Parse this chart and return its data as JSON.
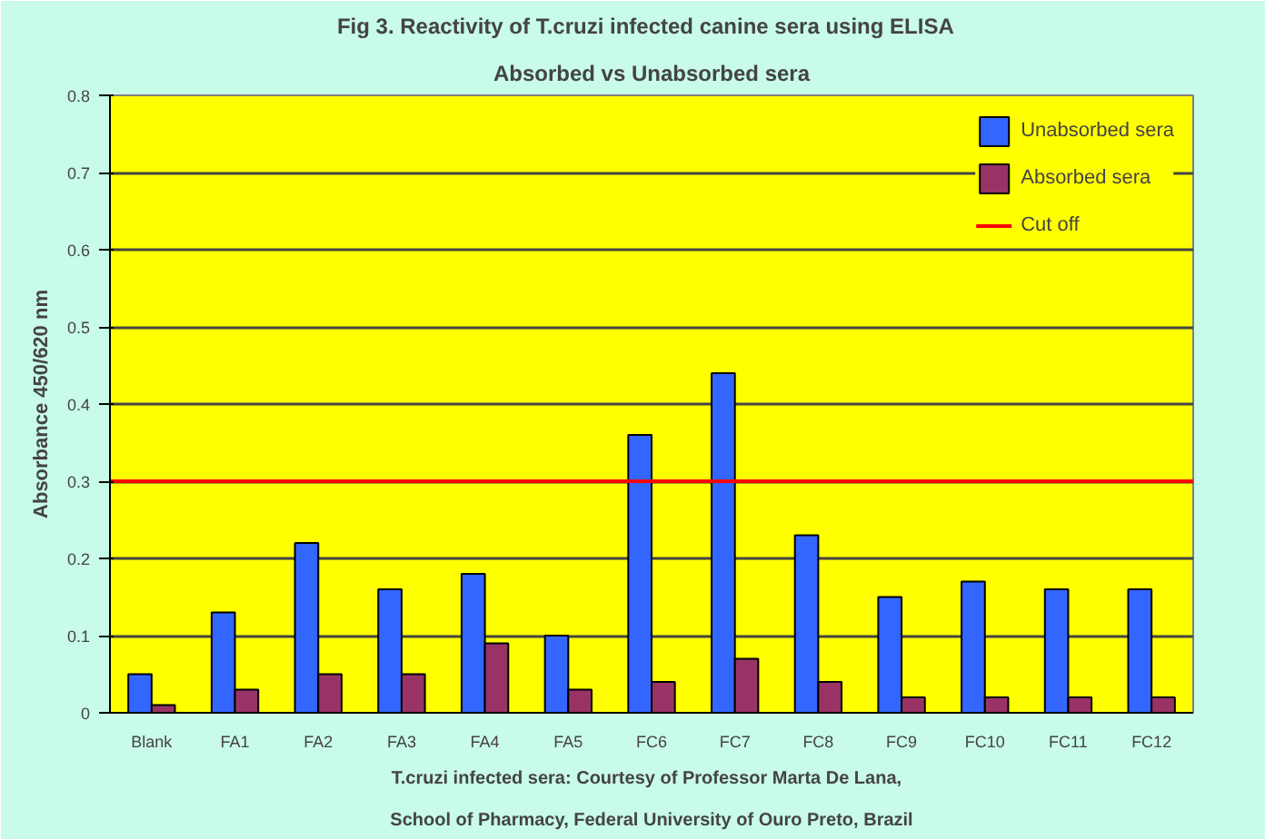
{
  "chart_data": {
    "type": "bar",
    "title": "Fig 3.   Reactivity of T.cruzi infected canine sera using ELISA",
    "subtitle": "Absorbed vs Unabsorbed sera",
    "ylabel": "Absorbance 450/620 nm",
    "categories": [
      "Blank",
      "FA1",
      "FA2",
      "FA3",
      "FA4",
      "FA5",
      "FC6",
      "FC7",
      "FC8",
      "FC9",
      "FC10",
      "FC11",
      "FC12"
    ],
    "series": [
      {
        "name": "Unabsorbed sera",
        "color": "#3366ff",
        "values": [
          0.05,
          0.13,
          0.22,
          0.16,
          0.18,
          0.1,
          0.36,
          0.44,
          0.23,
          0.15,
          0.17,
          0.16,
          0.16
        ]
      },
      {
        "name": "Absorbed sera",
        "color": "#993366",
        "values": [
          0.01,
          0.03,
          0.05,
          0.05,
          0.09,
          0.03,
          0.04,
          0.07,
          0.04,
          0.02,
          0.02,
          0.02,
          0.02
        ]
      }
    ],
    "ref_lines": [
      {
        "axis": "y",
        "value": 0.3,
        "label": "Cut off",
        "color": "#ff0000",
        "line_style": "solid"
      }
    ],
    "ylim": [
      0,
      0.8
    ],
    "yticks": [
      0,
      0.1,
      0.2,
      0.3,
      0.4,
      0.5,
      0.6,
      0.7,
      0.8
    ],
    "grid": "y",
    "legend": "top right",
    "annotations": [
      "T.cruzi infected sera:   Courtesy of Professor Marta De Lana,",
      "School of Pharmacy, Federal University of Ouro Preto, Brazil"
    ]
  }
}
